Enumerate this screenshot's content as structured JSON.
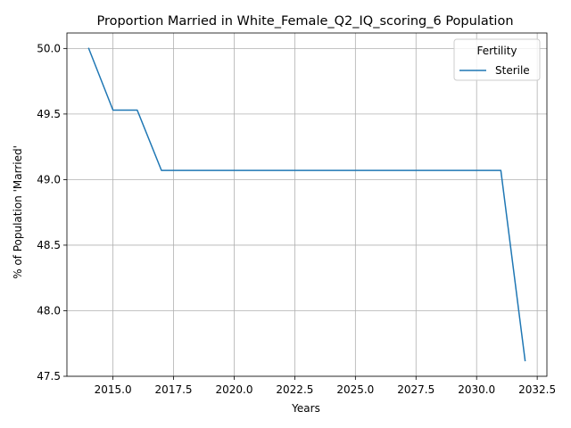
{
  "chart_data": {
    "type": "line",
    "title": "Proportion Married in White_Female_Q2_IQ_scoring_6 Population",
    "xlabel": "Years",
    "ylabel": "% of Population 'Married'",
    "xlim": [
      2013.1,
      2032.9
    ],
    "ylim": [
      47.5,
      50.118
    ],
    "x_ticks": [
      2015.0,
      2017.5,
      2020.0,
      2022.5,
      2025.0,
      2027.5,
      2030.0,
      2032.5
    ],
    "x_tick_labels": [
      "2015.0",
      "2017.5",
      "2020.0",
      "2022.5",
      "2025.0",
      "2027.5",
      "2030.0",
      "2032.5"
    ],
    "y_ticks": [
      47.5,
      48.0,
      48.5,
      49.0,
      49.5,
      50.0
    ],
    "y_tick_labels": [
      "47.5",
      "48.0",
      "48.5",
      "49.0",
      "49.5",
      "50.0"
    ],
    "grid": true,
    "legend": {
      "title": "Fertility",
      "placement": "top-right"
    },
    "series": [
      {
        "name": "Sterile",
        "color": "#1f77b4",
        "x": [
          2014,
          2015,
          2016,
          2017,
          2018,
          2019,
          2020,
          2021,
          2022,
          2023,
          2024,
          2025,
          2026,
          2027,
          2028,
          2029,
          2030,
          2031,
          2032
        ],
        "y": [
          50.0,
          49.53,
          49.53,
          49.07,
          49.07,
          49.07,
          49.07,
          49.07,
          49.07,
          49.07,
          49.07,
          49.07,
          49.07,
          49.07,
          49.07,
          49.07,
          49.07,
          49.07,
          47.62
        ]
      }
    ]
  }
}
